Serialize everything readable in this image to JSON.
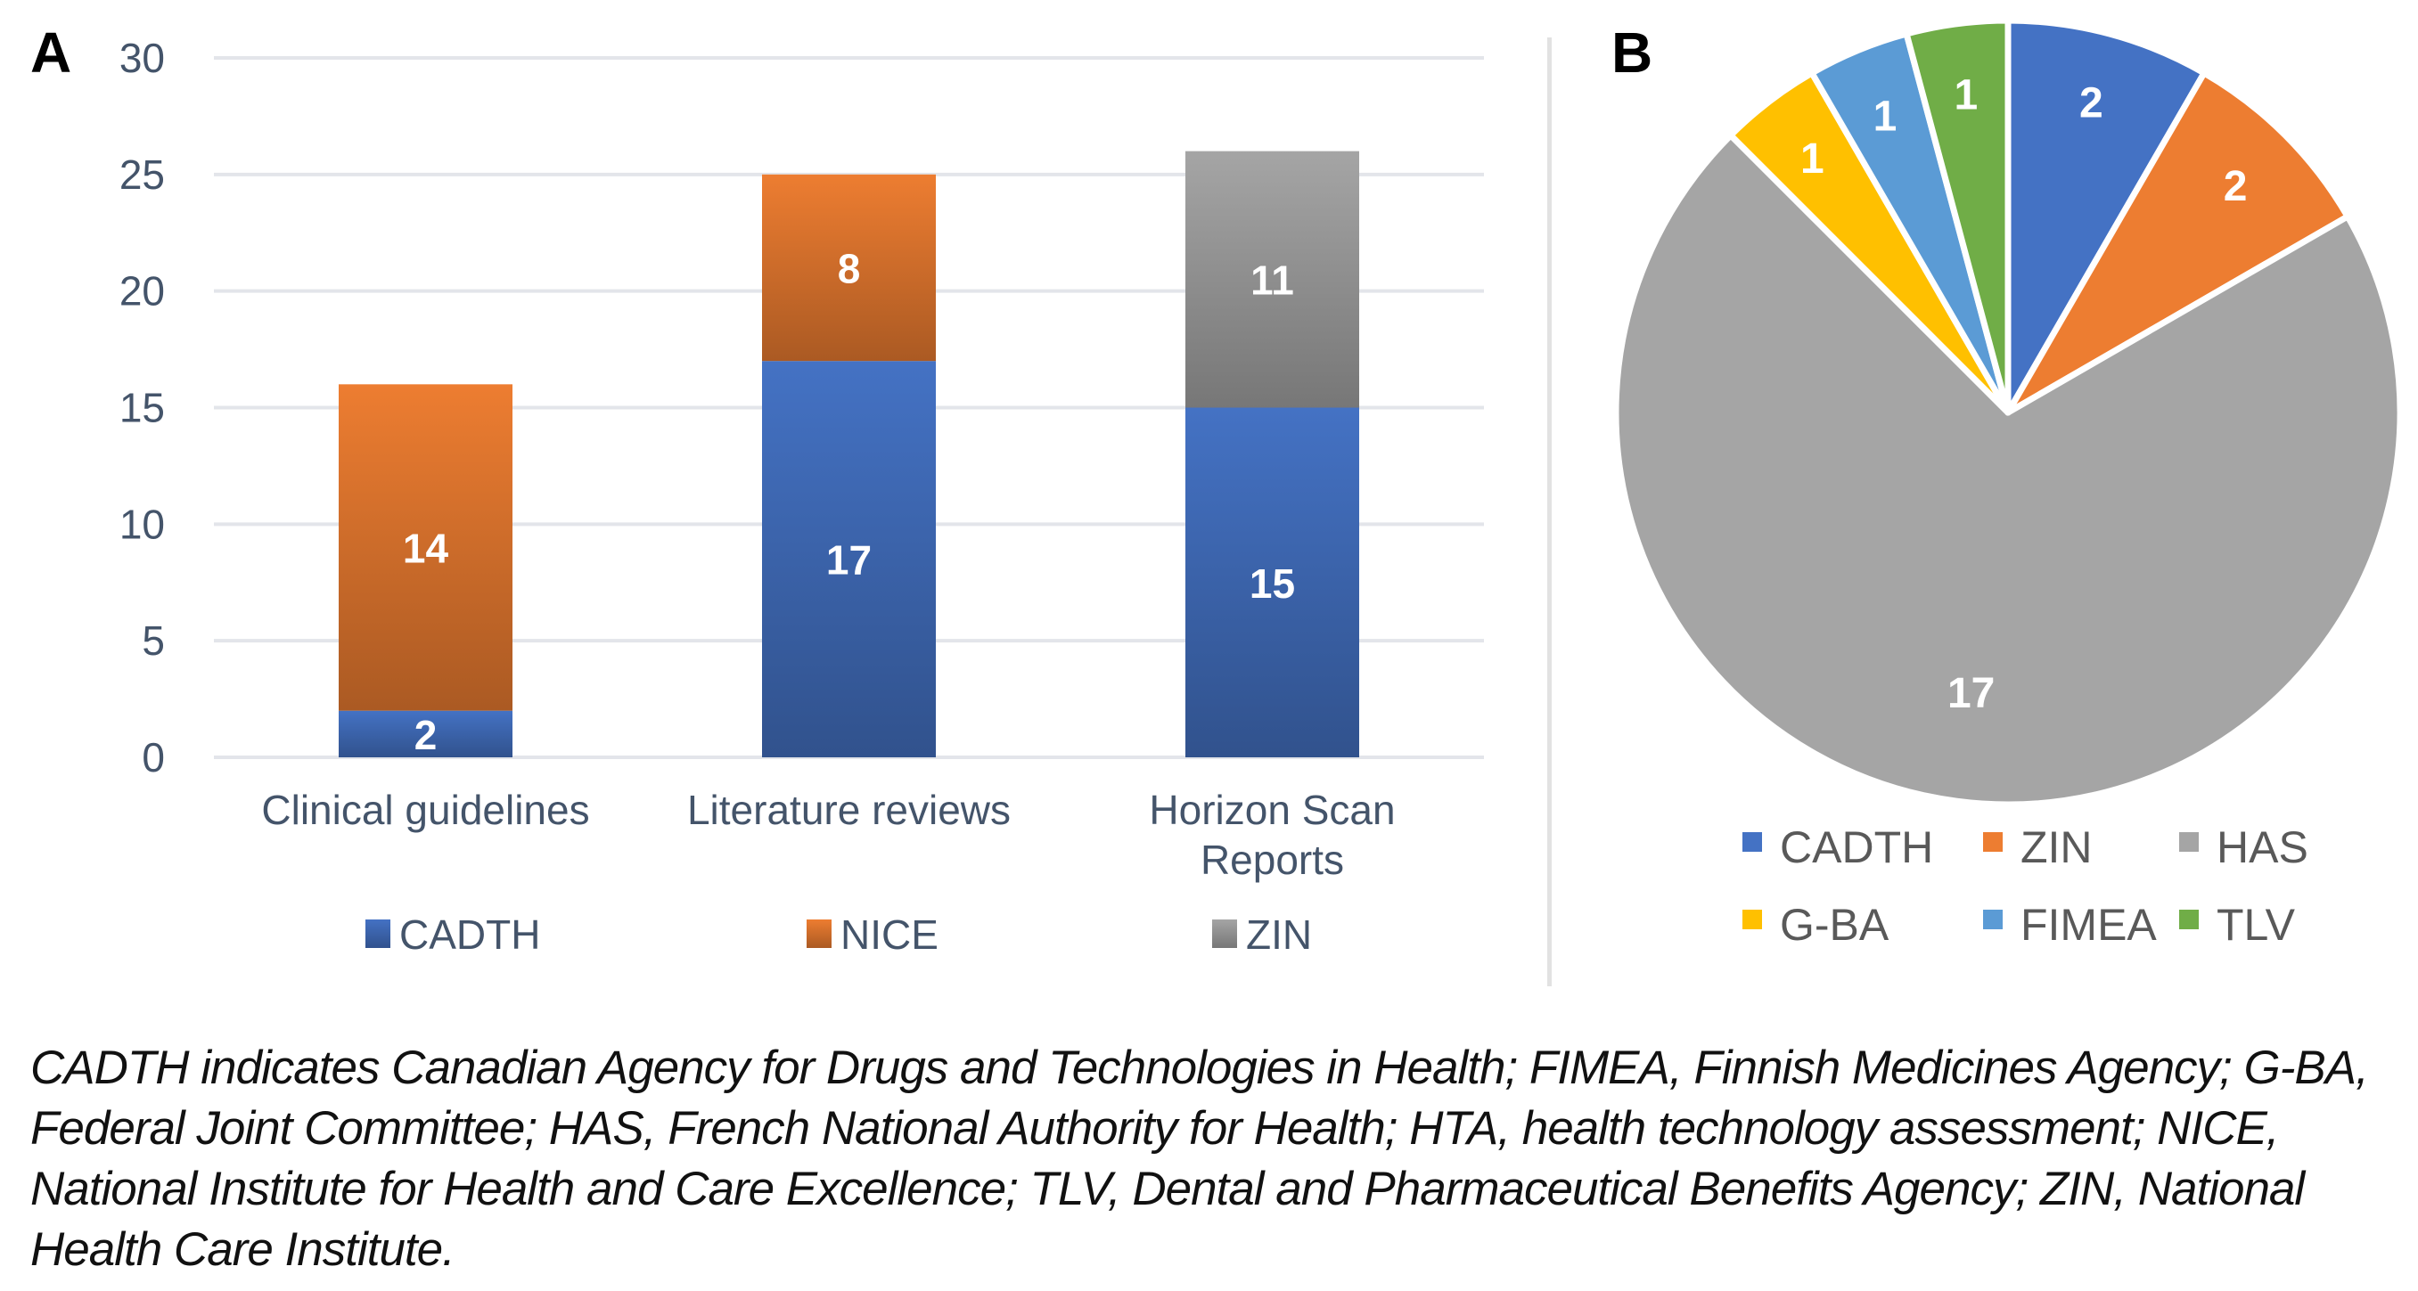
{
  "figure": {
    "panel_a_label": "A",
    "panel_b_label": "B",
    "caption": "CADTH indicates Canadian Agency for Drugs and Technologies in Health; FIMEA, Finnish Medicines Agency; G-BA, Federal Joint Committee; HAS, French National Authority for Health; HTA, health technology assessment; NICE, National Institute for Health and Care Excellence; TLV, Dental and Pharmaceutical Benefits Agency; ZIN, National Health Care Institute."
  },
  "chart_data": [
    {
      "type": "bar",
      "stacked": true,
      "title": "",
      "xlabel": "",
      "ylabel": "",
      "ylim": [
        0,
        30
      ],
      "yticks": [
        0,
        5,
        10,
        15,
        20,
        25,
        30
      ],
      "grid": true,
      "legend_position": "bottom",
      "categories": [
        [
          "Clinical guidelines"
        ],
        [
          "Literature reviews"
        ],
        [
          "Horizon Scan",
          "Reports"
        ]
      ],
      "series": [
        {
          "name": "CADTH",
          "color": "#4472c4",
          "values": [
            2,
            17,
            15
          ]
        },
        {
          "name": "NICE",
          "color": "#ed7d31",
          "values": [
            14,
            8,
            0
          ]
        },
        {
          "name": "ZIN",
          "color": "#a5a5a5",
          "values": [
            0,
            0,
            11
          ]
        }
      ],
      "data_labels": true
    },
    {
      "type": "pie",
      "title": "",
      "legend_position": "bottom",
      "slices": [
        {
          "label": "CADTH",
          "value": 2,
          "color": "#4472c4"
        },
        {
          "label": "ZIN",
          "value": 2,
          "color": "#ed7d31"
        },
        {
          "label": "HAS",
          "value": 17,
          "color": "#a5a5a5"
        },
        {
          "label": "G-BA",
          "value": 1,
          "color": "#ffc000"
        },
        {
          "label": "FIMEA",
          "value": 1,
          "color": "#5b9bd5"
        },
        {
          "label": "TLV",
          "value": 1,
          "color": "#70ad47"
        }
      ],
      "data_labels": true
    }
  ]
}
